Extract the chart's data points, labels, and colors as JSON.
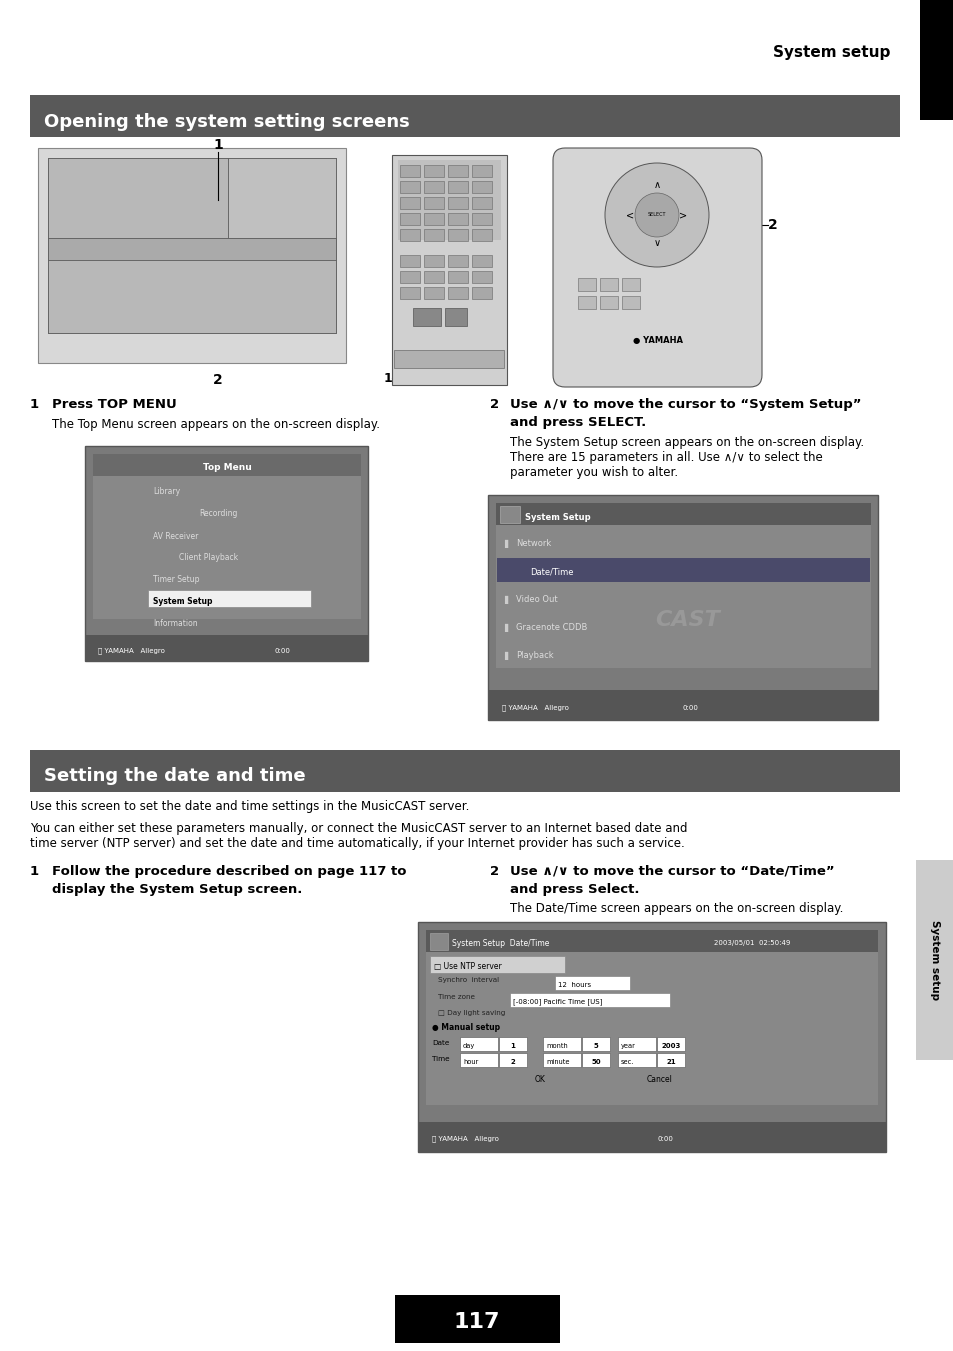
{
  "page_width": 9.54,
  "page_height": 13.51,
  "dpi": 100,
  "bg_color": "#ffffff",
  "header_text": "System setup",
  "section1_header": "Opening the system setting screens",
  "section1_header_bg": "#595959",
  "section1_header_color": "#ffffff",
  "section2_header": "Setting the date and time",
  "section2_header_bg": "#595959",
  "section2_header_color": "#ffffff",
  "body1": "Use this screen to set the date and time settings in the MusicCAST server.",
  "body2_line1": "You can either set these parameters manually, or connect the MusicCAST server to an Internet based date and",
  "body2_line2": "time server (NTP server) and set the date and time automatically, if your Internet provider has such a service.",
  "step1_bold": "Press TOP MENU",
  "step1_normal": "The Top Menu screen appears on the on-screen display.",
  "step2_bold_line1": "Use ∧/∨ to move the cursor to “System Setup”",
  "step2_bold_line2": "and press SELECT.",
  "step2_normal_line1": "The System Setup screen appears on the on-screen display.",
  "step2_normal_line2": "There are 15 parameters in all. Use ∧/∨ to select the",
  "step2_normal_line3": "parameter you wish to alter.",
  "step3_bold_line1": "Follow the procedure described on page 117 to",
  "step3_bold_line2": "display the System Setup screen.",
  "step4_bold_line1": "Use ∧/∨ to move the cursor to “Date/Time”",
  "step4_bold_line2": "and press Select.",
  "step4_normal": "The Date/Time screen appears on the on-screen display.",
  "page_number": "117",
  "side_label": "System setup",
  "gray_screen_bg": "#7a7a7a",
  "gray_screen_light": "#9a9a9a",
  "gray_screen_dark": "#555555",
  "screen_highlight": "#4a4a7a",
  "screen_footer_bg": "#4a4a4a"
}
